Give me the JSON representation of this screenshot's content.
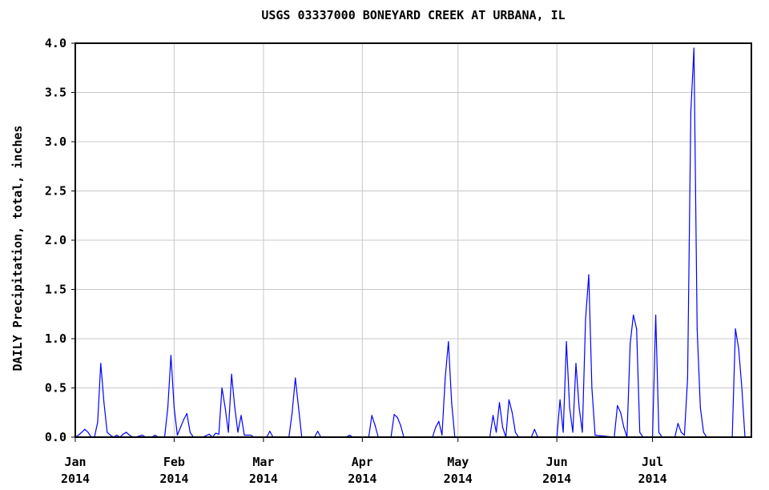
{
  "chart_data": {
    "type": "line",
    "title": "USGS 03337000 BONEYARD CREEK AT URBANA, IL",
    "xlabel": "",
    "ylabel": "DAILY Precipitation, total, inches",
    "ylim": [
      0,
      4.0
    ],
    "xlim": [
      "2014-01-01",
      "2014-08-01"
    ],
    "grid": true,
    "yticks": [
      "0.0",
      "0.5",
      "1.0",
      "1.5",
      "2.0",
      "2.5",
      "3.0",
      "3.5",
      "4.0"
    ],
    "xticks": [
      {
        "date": "2014-01-01",
        "label1": "Jan",
        "label2": "2014"
      },
      {
        "date": "2014-02-01",
        "label1": "Feb",
        "label2": "2014"
      },
      {
        "date": "2014-03-01",
        "label1": "Mar",
        "label2": "2014"
      },
      {
        "date": "2014-04-01",
        "label1": "Apr",
        "label2": "2014"
      },
      {
        "date": "2014-05-01",
        "label1": "May",
        "label2": "2014"
      },
      {
        "date": "2014-06-01",
        "label1": "Jun",
        "label2": "2014"
      },
      {
        "date": "2014-07-01",
        "label1": "Jul",
        "label2": "2014"
      }
    ],
    "series": [
      {
        "color": "#0000ff",
        "points": [
          [
            "2014-01-01",
            0.0
          ],
          [
            "2014-01-02",
            0.02
          ],
          [
            "2014-01-03",
            0.05
          ],
          [
            "2014-01-04",
            0.08
          ],
          [
            "2014-01-05",
            0.05
          ],
          [
            "2014-01-06",
            0.0
          ],
          [
            "2014-01-07",
            0.0
          ],
          [
            "2014-01-08",
            0.15
          ],
          [
            "2014-01-09",
            0.75
          ],
          [
            "2014-01-10",
            0.35
          ],
          [
            "2014-01-11",
            0.05
          ],
          [
            "2014-01-12",
            0.02
          ],
          [
            "2014-01-13",
            0.0
          ],
          [
            "2014-01-14",
            0.02
          ],
          [
            "2014-01-15",
            0.0
          ],
          [
            "2014-01-16",
            0.03
          ],
          [
            "2014-01-17",
            0.05
          ],
          [
            "2014-01-18",
            0.02
          ],
          [
            "2014-01-19",
            0.0
          ],
          [
            "2014-01-20",
            0.0
          ],
          [
            "2014-01-22",
            0.02
          ],
          [
            "2014-01-23",
            0.0
          ],
          [
            "2014-01-25",
            0.0
          ],
          [
            "2014-01-26",
            0.02
          ],
          [
            "2014-01-27",
            0.0
          ],
          [
            "2014-01-29",
            0.0
          ],
          [
            "2014-01-30",
            0.3
          ],
          [
            "2014-01-31",
            0.83
          ],
          [
            "2014-02-01",
            0.3
          ],
          [
            "2014-02-02",
            0.02
          ],
          [
            "2014-02-03",
            0.1
          ],
          [
            "2014-02-04",
            0.18
          ],
          [
            "2014-02-05",
            0.24
          ],
          [
            "2014-02-06",
            0.05
          ],
          [
            "2014-02-07",
            0.0
          ],
          [
            "2014-02-10",
            0.0
          ],
          [
            "2014-02-12",
            0.03
          ],
          [
            "2014-02-13",
            0.0
          ],
          [
            "2014-02-14",
            0.04
          ],
          [
            "2014-02-15",
            0.03
          ],
          [
            "2014-02-16",
            0.5
          ],
          [
            "2014-02-17",
            0.3
          ],
          [
            "2014-02-18",
            0.05
          ],
          [
            "2014-02-19",
            0.64
          ],
          [
            "2014-02-20",
            0.3
          ],
          [
            "2014-02-21",
            0.05
          ],
          [
            "2014-02-22",
            0.22
          ],
          [
            "2014-02-23",
            0.02
          ],
          [
            "2014-02-24",
            0.02
          ],
          [
            "2014-02-25",
            0.02
          ],
          [
            "2014-02-26",
            0.0
          ],
          [
            "2014-03-02",
            0.0
          ],
          [
            "2014-03-03",
            0.06
          ],
          [
            "2014-03-04",
            0.0
          ],
          [
            "2014-03-09",
            0.0
          ],
          [
            "2014-03-10",
            0.25
          ],
          [
            "2014-03-11",
            0.6
          ],
          [
            "2014-03-12",
            0.3
          ],
          [
            "2014-03-13",
            0.0
          ],
          [
            "2014-03-17",
            0.0
          ],
          [
            "2014-03-18",
            0.06
          ],
          [
            "2014-03-19",
            0.0
          ],
          [
            "2014-03-27",
            0.0
          ],
          [
            "2014-03-28",
            0.02
          ],
          [
            "2014-03-29",
            0.0
          ],
          [
            "2014-04-03",
            0.0
          ],
          [
            "2014-04-04",
            0.22
          ],
          [
            "2014-04-05",
            0.12
          ],
          [
            "2014-04-06",
            0.0
          ],
          [
            "2014-04-10",
            0.0
          ],
          [
            "2014-04-11",
            0.23
          ],
          [
            "2014-04-12",
            0.2
          ],
          [
            "2014-04-13",
            0.12
          ],
          [
            "2014-04-14",
            0.0
          ],
          [
            "2014-04-23",
            0.0
          ],
          [
            "2014-04-24",
            0.1
          ],
          [
            "2014-04-25",
            0.16
          ],
          [
            "2014-04-26",
            0.02
          ],
          [
            "2014-04-27",
            0.6
          ],
          [
            "2014-04-28",
            0.97
          ],
          [
            "2014-04-29",
            0.35
          ],
          [
            "2014-04-30",
            0.0
          ],
          [
            "2014-05-11",
            0.0
          ],
          [
            "2014-05-12",
            0.22
          ],
          [
            "2014-05-13",
            0.05
          ],
          [
            "2014-05-14",
            0.35
          ],
          [
            "2014-05-15",
            0.1
          ],
          [
            "2014-05-16",
            0.0
          ],
          [
            "2014-05-17",
            0.38
          ],
          [
            "2014-05-18",
            0.25
          ],
          [
            "2014-05-19",
            0.05
          ],
          [
            "2014-05-20",
            0.0
          ],
          [
            "2014-05-24",
            0.0
          ],
          [
            "2014-05-25",
            0.08
          ],
          [
            "2014-05-26",
            0.0
          ],
          [
            "2014-06-01",
            0.0
          ],
          [
            "2014-06-02",
            0.38
          ],
          [
            "2014-06-03",
            0.05
          ],
          [
            "2014-06-04",
            0.97
          ],
          [
            "2014-06-05",
            0.3
          ],
          [
            "2014-06-06",
            0.05
          ],
          [
            "2014-06-07",
            0.75
          ],
          [
            "2014-06-08",
            0.3
          ],
          [
            "2014-06-09",
            0.05
          ],
          [
            "2014-06-10",
            1.2
          ],
          [
            "2014-06-11",
            1.65
          ],
          [
            "2014-06-12",
            0.5
          ],
          [
            "2014-06-13",
            0.02
          ],
          [
            "2014-06-19",
            0.0
          ],
          [
            "2014-06-20",
            0.32
          ],
          [
            "2014-06-21",
            0.25
          ],
          [
            "2014-06-22",
            0.1
          ],
          [
            "2014-06-23",
            0.0
          ],
          [
            "2014-06-24",
            0.95
          ],
          [
            "2014-06-25",
            1.24
          ],
          [
            "2014-06-26",
            1.1
          ],
          [
            "2014-06-27",
            0.05
          ],
          [
            "2014-06-28",
            0.0
          ],
          [
            "2014-07-01",
            0.0
          ],
          [
            "2014-07-02",
            1.24
          ],
          [
            "2014-07-03",
            0.05
          ],
          [
            "2014-07-04",
            0.0
          ],
          [
            "2014-07-08",
            0.0
          ],
          [
            "2014-07-09",
            0.14
          ],
          [
            "2014-07-10",
            0.05
          ],
          [
            "2014-07-11",
            0.02
          ],
          [
            "2014-07-12",
            0.6
          ],
          [
            "2014-07-13",
            3.3
          ],
          [
            "2014-07-14",
            3.95
          ],
          [
            "2014-07-15",
            1.1
          ],
          [
            "2014-07-16",
            0.3
          ],
          [
            "2014-07-17",
            0.05
          ],
          [
            "2014-07-18",
            0.0
          ],
          [
            "2014-07-26",
            0.0
          ],
          [
            "2014-07-27",
            1.1
          ],
          [
            "2014-07-28",
            0.9
          ],
          [
            "2014-07-29",
            0.5
          ],
          [
            "2014-07-30",
            0.0
          ],
          [
            "2014-07-31",
            0.0
          ]
        ]
      }
    ]
  }
}
